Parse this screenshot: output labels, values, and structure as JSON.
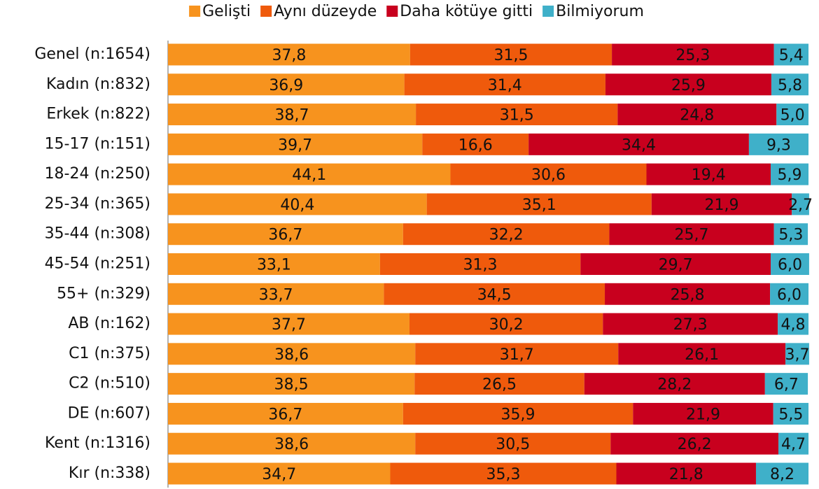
{
  "chart_data": {
    "type": "stacked_barh",
    "categories": [
      "Genel (n:1654)",
      "Kadın (n:832)",
      "Erkek (n:822)",
      "15-17 (n:151)",
      "18-24 (n:250)",
      "25-34 (n:365)",
      "35-44 (n:308)",
      "45-54 (n:251)",
      "55+ (n:329)",
      "AB (n:162)",
      "C1 (n:375)",
      "C2 (n:510)",
      "DE (n:607)",
      "Kent (n:1316)",
      "Kır (n:338)"
    ],
    "xlim": [
      0,
      100
    ],
    "legend": "top",
    "series": [
      {
        "name": "Gelişti",
        "color": "#f7931e",
        "values": [
          37.8,
          36.9,
          38.7,
          39.7,
          44.1,
          40.4,
          36.7,
          33.1,
          33.7,
          37.7,
          38.6,
          38.5,
          36.7,
          38.6,
          34.7
        ],
        "value_labels": [
          "37,8",
          "36,9",
          "38,7",
          "39,7",
          "44,1",
          "40,4",
          "36,7",
          "33,1",
          "33,7",
          "37,7",
          "38,6",
          "38,5",
          "36,7",
          "38,6",
          "34,7"
        ]
      },
      {
        "name": "Aynı düzeyde",
        "color": "#ef5a0c",
        "values": [
          31.5,
          31.4,
          31.5,
          16.6,
          30.6,
          35.1,
          32.2,
          31.3,
          34.5,
          30.2,
          31.7,
          26.5,
          35.9,
          30.5,
          35.3
        ],
        "value_labels": [
          "31,5",
          "31,4",
          "31,5",
          "16,6",
          "30,6",
          "35,1",
          "32,2",
          "31,3",
          "34,5",
          "30,2",
          "31,7",
          "26,5",
          "35,9",
          "30,5",
          "35,3"
        ]
      },
      {
        "name": "Daha kötüye gitti",
        "color": "#c8001e",
        "values": [
          25.3,
          25.9,
          24.8,
          34.4,
          19.4,
          21.9,
          25.7,
          29.7,
          25.8,
          27.3,
          26.1,
          28.2,
          21.9,
          26.2,
          21.8
        ],
        "value_labels": [
          "25,3",
          "25,9",
          "24,8",
          "34,4",
          "19,4",
          "21,9",
          "25,7",
          "29,7",
          "25,8",
          "27,3",
          "26,1",
          "28,2",
          "21,9",
          "26,2",
          "21,8"
        ]
      },
      {
        "name": "Bilmiyorum",
        "color": "#3fb0c9",
        "values": [
          5.4,
          5.8,
          5,
          9.3,
          5.9,
          2.7,
          5.3,
          6,
          6,
          4.8,
          3.7,
          6.7,
          5.5,
          4.7,
          8.2
        ],
        "value_labels": [
          "5,4",
          "5,8",
          "5,0",
          "9,3",
          "5,9",
          "2,7",
          "5,3",
          "6,0",
          "6,0",
          "4,8",
          "3,7",
          "6,7",
          "5,5",
          "4,7",
          "8,2"
        ]
      }
    ]
  }
}
